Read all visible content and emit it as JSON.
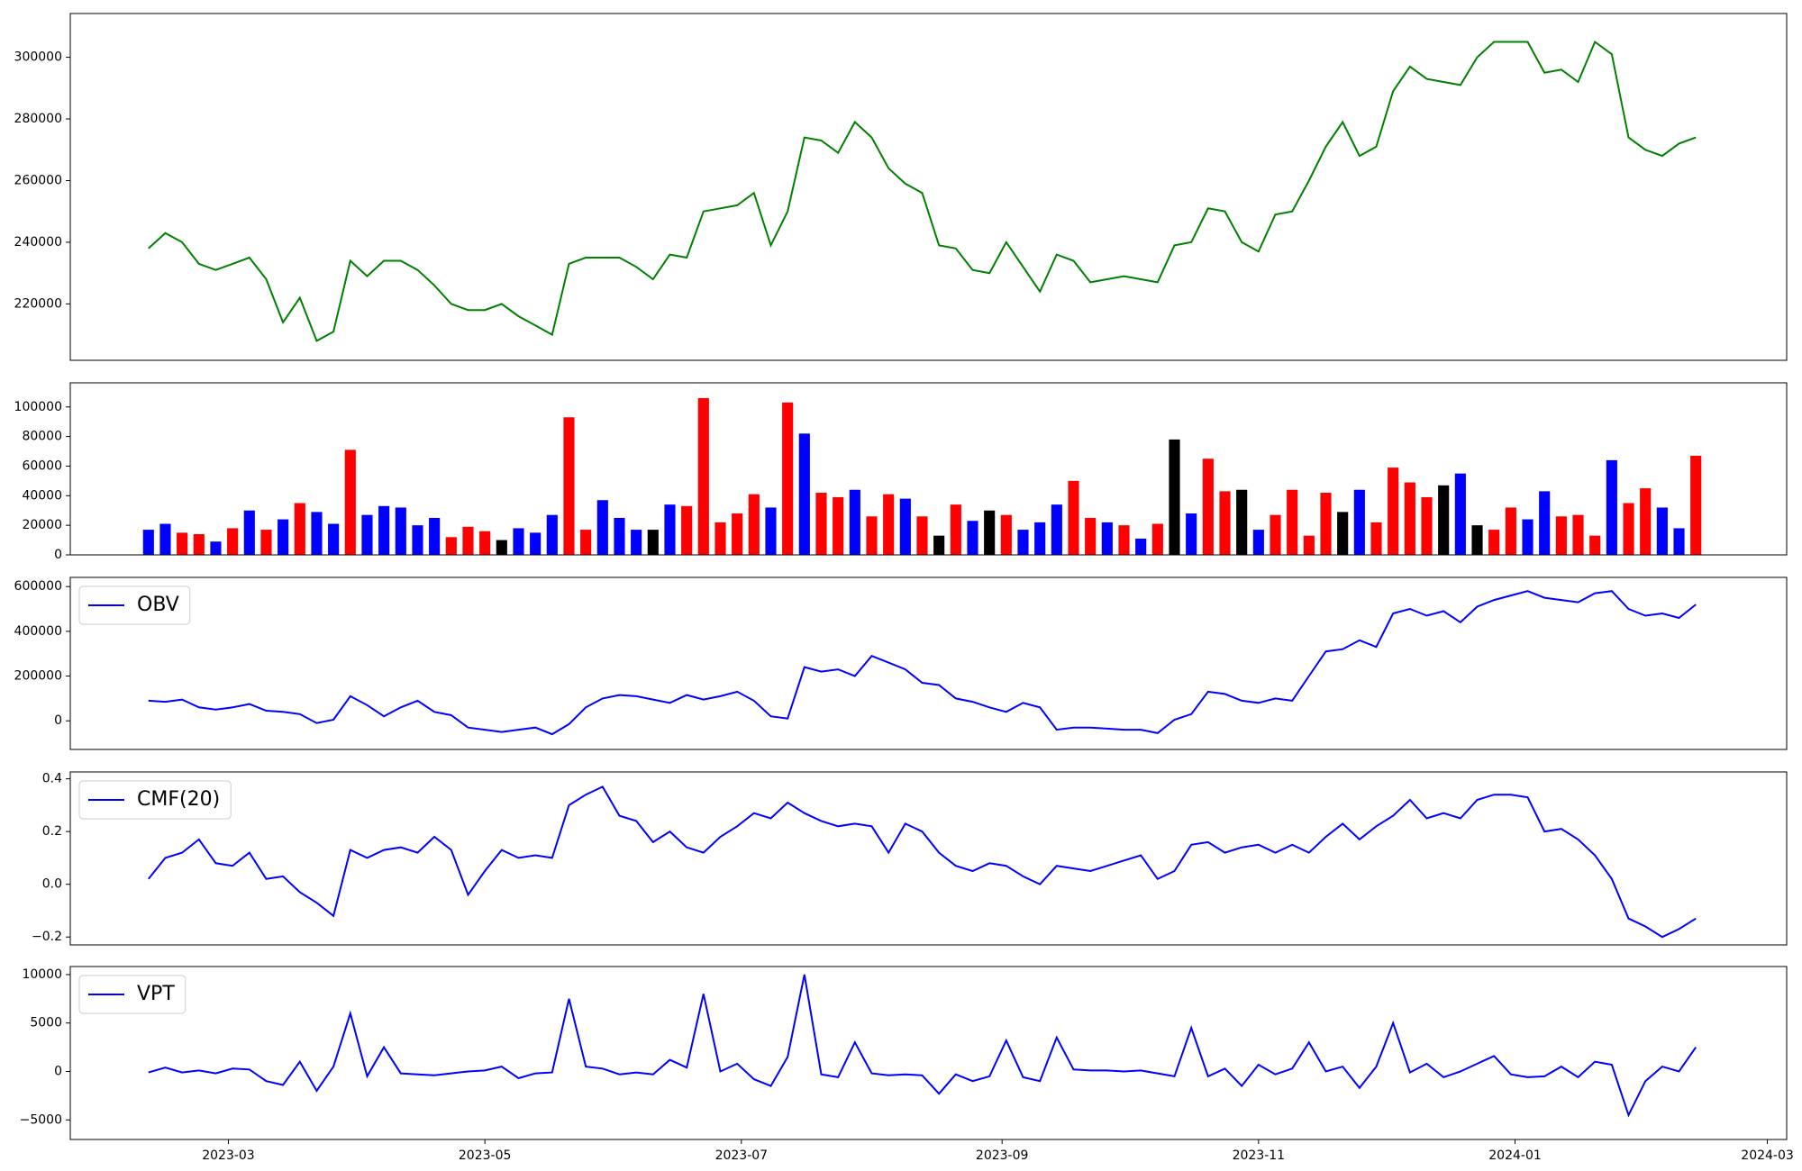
{
  "chart_data": [
    {
      "type": "line",
      "x": [
        -19,
        -15,
        -11,
        -7,
        -3,
        1,
        5,
        9,
        13,
        17,
        21,
        25,
        29,
        33,
        37,
        41,
        45,
        49,
        53,
        57,
        61,
        65,
        69,
        73,
        77,
        81,
        85,
        89,
        93,
        97,
        101,
        105,
        109,
        113,
        117,
        121,
        125,
        129,
        133,
        137,
        141,
        145,
        149,
        153,
        157,
        161,
        165,
        169,
        173,
        177,
        181,
        185,
        189,
        193,
        197,
        201,
        205,
        209,
        213,
        217,
        221,
        225,
        229,
        233,
        237,
        241,
        245,
        249,
        253,
        257,
        261,
        265,
        269,
        273,
        277,
        281,
        285,
        289,
        293,
        297,
        301,
        305,
        309,
        313,
        317,
        321,
        325,
        329,
        333,
        337,
        341,
        345,
        349
      ],
      "series": [
        {
          "color": "green",
          "values": [
            238000,
            243000,
            240000,
            233000,
            231000,
            233000,
            235000,
            228000,
            214000,
            222000,
            208000,
            211000,
            234000,
            229000,
            234000,
            234000,
            231000,
            226000,
            220000,
            218000,
            218000,
            220000,
            216000,
            213000,
            210000,
            233000,
            235000,
            235000,
            235000,
            232000,
            228000,
            236000,
            235000,
            250000,
            251000,
            252000,
            256000,
            239000,
            250000,
            274000,
            273000,
            269000,
            279000,
            274000,
            264000,
            259000,
            256000,
            239000,
            238000,
            231000,
            230000,
            240000,
            232000,
            224000,
            236000,
            234000,
            227000,
            228000,
            229000,
            228000,
            227000,
            239000,
            240000,
            251000,
            250000,
            240000,
            237000,
            249000,
            250000,
            260000,
            271000,
            279000,
            268000,
            271000,
            289000,
            297000,
            293000,
            292000,
            291000,
            300000,
            305000,
            305000,
            305000,
            295000,
            296000,
            292000,
            305000,
            301000,
            274000,
            270000,
            268000,
            272000,
            274000
          ]
        }
      ],
      "xlim": [
        -37.6,
        370.6
      ],
      "ylim": [
        201700,
        314200
      ],
      "yticks": [
        220000,
        240000,
        260000,
        280000,
        300000
      ]
    },
    {
      "type": "bar",
      "x": [
        -19,
        -15,
        -11,
        -7,
        -3,
        1,
        5,
        9,
        13,
        17,
        21,
        25,
        29,
        33,
        37,
        41,
        45,
        49,
        53,
        57,
        61,
        65,
        69,
        73,
        77,
        81,
        85,
        89,
        93,
        97,
        101,
        105,
        109,
        113,
        117,
        121,
        125,
        129,
        133,
        137,
        141,
        145,
        149,
        153,
        157,
        161,
        165,
        169,
        173,
        177,
        181,
        185,
        189,
        193,
        197,
        201,
        205,
        209,
        213,
        217,
        221,
        225,
        229,
        233,
        237,
        241,
        245,
        249,
        253,
        257,
        261,
        265,
        269,
        273,
        277,
        281,
        285,
        289,
        293,
        297,
        301,
        305,
        309,
        313,
        317,
        321,
        325,
        329,
        333,
        337,
        341,
        345,
        349
      ],
      "values": [
        17000,
        21000,
        15000,
        14000,
        9000,
        18000,
        30000,
        17000,
        24000,
        35000,
        29000,
        21000,
        71000,
        27000,
        33000,
        32000,
        20000,
        25000,
        12000,
        19000,
        16000,
        10000,
        18000,
        15000,
        27000,
        93000,
        17000,
        37000,
        25000,
        17000,
        17000,
        34000,
        33000,
        106000,
        22000,
        28000,
        41000,
        32000,
        103000,
        82000,
        42000,
        39000,
        44000,
        26000,
        41000,
        38000,
        26000,
        13000,
        34000,
        23000,
        30000,
        27000,
        17000,
        22000,
        34000,
        50000,
        25000,
        22000,
        20000,
        11000,
        21000,
        78000,
        28000,
        65000,
        43000,
        44000,
        17000,
        27000,
        44000,
        13000,
        42000,
        29000,
        44000,
        22000,
        59000,
        49000,
        39000,
        47000,
        55000,
        20000,
        17000,
        32000,
        24000,
        43000,
        26000,
        27000,
        13000,
        64000,
        35000,
        45000,
        32000,
        18000,
        67000
      ],
      "colors": [
        "blue",
        "blue",
        "red",
        "red",
        "blue",
        "red",
        "blue",
        "red",
        "blue",
        "red",
        "blue",
        "blue",
        "red",
        "blue",
        "blue",
        "blue",
        "blue",
        "blue",
        "red",
        "red",
        "red",
        "black",
        "blue",
        "blue",
        "blue",
        "red",
        "red",
        "blue",
        "blue",
        "blue",
        "black",
        "blue",
        "red",
        "red",
        "red",
        "red",
        "red",
        "blue",
        "red",
        "blue",
        "red",
        "red",
        "blue",
        "red",
        "red",
        "blue",
        "red",
        "black",
        "red",
        "blue",
        "black",
        "red",
        "blue",
        "blue",
        "blue",
        "red",
        "red",
        "blue",
        "red",
        "blue",
        "red",
        "black",
        "blue",
        "red",
        "red",
        "black",
        "blue",
        "red",
        "red",
        "red",
        "red",
        "black",
        "blue",
        "red",
        "red",
        "red",
        "red",
        "black",
        "blue",
        "black",
        "red",
        "red",
        "blue",
        "blue",
        "red",
        "red",
        "red",
        "blue",
        "red",
        "red",
        "blue",
        "blue",
        "red"
      ],
      "xlim": [
        -37.6,
        370.6
      ],
      "ylim": [
        0,
        116300
      ],
      "yticks": [
        0,
        20000,
        40000,
        60000,
        80000,
        100000
      ]
    },
    {
      "type": "line",
      "legend": "upper left",
      "x": [
        -19,
        -15,
        -11,
        -7,
        -3,
        1,
        5,
        9,
        13,
        17,
        21,
        25,
        29,
        33,
        37,
        41,
        45,
        49,
        53,
        57,
        61,
        65,
        69,
        73,
        77,
        81,
        85,
        89,
        93,
        97,
        101,
        105,
        109,
        113,
        117,
        121,
        125,
        129,
        133,
        137,
        141,
        145,
        149,
        153,
        157,
        161,
        165,
        169,
        173,
        177,
        181,
        185,
        189,
        193,
        197,
        201,
        205,
        209,
        213,
        217,
        221,
        225,
        229,
        233,
        237,
        241,
        245,
        249,
        253,
        257,
        261,
        265,
        269,
        273,
        277,
        281,
        285,
        289,
        293,
        297,
        301,
        305,
        309,
        313,
        317,
        321,
        325,
        329,
        333,
        337,
        341,
        345,
        349
      ],
      "series": [
        {
          "name": "OBV",
          "color": "blue",
          "values": [
            90000,
            85000,
            95000,
            60000,
            50000,
            60000,
            75000,
            45000,
            40000,
            30000,
            -10000,
            5000,
            110000,
            70000,
            20000,
            60000,
            90000,
            40000,
            25000,
            -30000,
            -40000,
            -50000,
            -40000,
            -30000,
            -60000,
            -15000,
            60000,
            100000,
            115000,
            110000,
            95000,
            80000,
            115000,
            95000,
            110000,
            130000,
            90000,
            20000,
            10000,
            240000,
            220000,
            230000,
            200000,
            290000,
            260000,
            230000,
            170000,
            160000,
            100000,
            85000,
            60000,
            40000,
            80000,
            60000,
            -40000,
            -30000,
            -30000,
            -35000,
            -40000,
            -40000,
            -55000,
            5000,
            30000,
            130000,
            120000,
            90000,
            80000,
            100000,
            90000,
            200000,
            310000,
            320000,
            360000,
            330000,
            480000,
            500000,
            470000,
            490000,
            440000,
            510000,
            540000,
            560000,
            580000,
            550000,
            540000,
            530000,
            570000,
            580000,
            500000,
            470000,
            480000,
            460000,
            520000
          ]
        }
      ],
      "xlim": [
        -37.6,
        370.6
      ],
      "ylim": [
        -128000,
        641000
      ],
      "yticks": [
        0,
        200000,
        400000,
        600000
      ]
    },
    {
      "type": "line",
      "legend": "upper left",
      "x": [
        -19,
        -15,
        -11,
        -7,
        -3,
        1,
        5,
        9,
        13,
        17,
        21,
        25,
        29,
        33,
        37,
        41,
        45,
        49,
        53,
        57,
        61,
        65,
        69,
        73,
        77,
        81,
        85,
        89,
        93,
        97,
        101,
        105,
        109,
        113,
        117,
        121,
        125,
        129,
        133,
        137,
        141,
        145,
        149,
        153,
        157,
        161,
        165,
        169,
        173,
        177,
        181,
        185,
        189,
        193,
        197,
        201,
        205,
        209,
        213,
        217,
        221,
        225,
        229,
        233,
        237,
        241,
        245,
        249,
        253,
        257,
        261,
        265,
        269,
        273,
        277,
        281,
        285,
        289,
        293,
        297,
        301,
        305,
        309,
        313,
        317,
        321,
        325,
        329,
        333,
        337,
        341,
        345,
        349
      ],
      "series": [
        {
          "name": "CMF(20)",
          "color": "blue",
          "values": [
            0.02,
            0.1,
            0.12,
            0.17,
            0.08,
            0.07,
            0.12,
            0.02,
            0.03,
            -0.03,
            -0.07,
            -0.12,
            0.13,
            0.1,
            0.13,
            0.14,
            0.12,
            0.18,
            0.13,
            -0.04,
            0.05,
            0.13,
            0.1,
            0.11,
            0.1,
            0.3,
            0.34,
            0.37,
            0.26,
            0.24,
            0.16,
            0.2,
            0.14,
            0.12,
            0.18,
            0.22,
            0.27,
            0.25,
            0.31,
            0.27,
            0.24,
            0.22,
            0.23,
            0.22,
            0.12,
            0.23,
            0.2,
            0.12,
            0.07,
            0.05,
            0.08,
            0.07,
            0.03,
            0.0,
            0.07,
            0.06,
            0.05,
            0.07,
            0.09,
            0.11,
            0.02,
            0.05,
            0.15,
            0.16,
            0.12,
            0.14,
            0.15,
            0.12,
            0.15,
            0.12,
            0.18,
            0.23,
            0.17,
            0.22,
            0.26,
            0.32,
            0.25,
            0.27,
            0.25,
            0.32,
            0.34,
            0.34,
            0.33,
            0.2,
            0.21,
            0.17,
            0.11,
            0.02,
            -0.13,
            -0.16,
            -0.2,
            -0.17,
            -0.13
          ]
        }
      ],
      "xlim": [
        -37.6,
        370.6
      ],
      "ylim": [
        -0.23,
        0.426
      ],
      "yticks": [
        {
          "value": -0.2,
          "label": "−0.2"
        },
        {
          "value": 0,
          "label": "0.0"
        },
        0.2,
        0.4
      ]
    },
    {
      "type": "line",
      "legend": "upper left",
      "x": [
        -19,
        -15,
        -11,
        -7,
        -3,
        1,
        5,
        9,
        13,
        17,
        21,
        25,
        29,
        33,
        37,
        41,
        45,
        49,
        53,
        57,
        61,
        65,
        69,
        73,
        77,
        81,
        85,
        89,
        93,
        97,
        101,
        105,
        109,
        113,
        117,
        121,
        125,
        129,
        133,
        137,
        141,
        145,
        149,
        153,
        157,
        161,
        165,
        169,
        173,
        177,
        181,
        185,
        189,
        193,
        197,
        201,
        205,
        209,
        213,
        217,
        221,
        225,
        229,
        233,
        237,
        241,
        245,
        249,
        253,
        257,
        261,
        265,
        269,
        273,
        277,
        281,
        285,
        289,
        293,
        297,
        301,
        305,
        309,
        313,
        317,
        321,
        325,
        329,
        333,
        337,
        341,
        345,
        349
      ],
      "series": [
        {
          "name": "VPT",
          "color": "blue",
          "values": [
            -100,
            400,
            -100,
            100,
            -200,
            300,
            200,
            -1000,
            -1400,
            1000,
            -2000,
            500,
            6000,
            -500,
            2500,
            -200,
            -300,
            -400,
            -200,
            0,
            100,
            500,
            -700,
            -200,
            -100,
            7500,
            500,
            300,
            -300,
            -100,
            -300,
            1200,
            400,
            8000,
            0,
            800,
            -800,
            -1500,
            1500,
            10000,
            -300,
            -600,
            3000,
            -200,
            -400,
            -300,
            -400,
            -2300,
            -300,
            -1000,
            -500,
            3200,
            -600,
            -1000,
            3500,
            200,
            100,
            100,
            0,
            100,
            -200,
            -500,
            4500,
            -500,
            300,
            -1500,
            700,
            -300,
            300,
            3000,
            0,
            500,
            -1700,
            500,
            5000,
            -100,
            800,
            -600,
            0,
            800,
            1600,
            -300,
            -600,
            -500,
            500,
            -600,
            1000,
            700,
            -4500,
            -1000,
            500,
            0,
            2500
          ]
        }
      ],
      "xlim": [
        -37.6,
        370.6
      ],
      "ylim": [
        -7020,
        10830
      ],
      "yticks": [
        {
          "value": -5000,
          "label": "−5000"
        },
        0,
        5000,
        10000
      ],
      "xticks": [
        {
          "value": 0,
          "label": "2023-03"
        },
        {
          "value": 61,
          "label": "2023-05"
        },
        {
          "value": 122,
          "label": "2023-07"
        },
        {
          "value": 184,
          "label": "2023-09"
        },
        {
          "value": 245,
          "label": "2023-11"
        },
        {
          "value": 306,
          "label": "2024-01"
        },
        {
          "value": 366,
          "label": "2024-03"
        }
      ]
    }
  ]
}
